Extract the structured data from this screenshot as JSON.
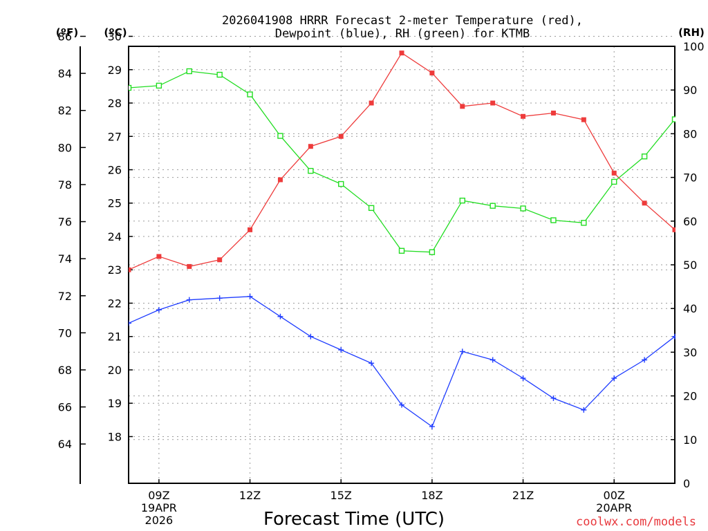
{
  "chart_data": {
    "type": "line",
    "title_line1": "2026041908 HRRR Forecast 2-meter Temperature (red),",
    "title_line2": "Dewpoint (blue), RH (green) for KTMB",
    "xlabel": "Forecast Time (UTC)",
    "credit": "coolwx.com/models",
    "units": {
      "f": "(ºF)",
      "c": "(ºC)",
      "rh": "(RH)"
    },
    "hours": [
      8,
      9,
      10,
      11,
      12,
      13,
      14,
      15,
      16,
      17,
      18,
      19,
      20,
      21,
      22,
      23,
      24,
      25,
      26
    ],
    "xlim": [
      8,
      26
    ],
    "ylim_c": [
      16.6,
      29.7
    ],
    "ylim_rh": [
      0,
      100
    ],
    "x_ticks": [
      {
        "hour": 9,
        "line1": "09Z",
        "line2": "19APR",
        "line3": "2026"
      },
      {
        "hour": 12,
        "line1": "12Z",
        "line2": "",
        "line3": ""
      },
      {
        "hour": 15,
        "line1": "15Z",
        "line2": "",
        "line3": ""
      },
      {
        "hour": 18,
        "line1": "18Z",
        "line2": "",
        "line3": ""
      },
      {
        "hour": 21,
        "line1": "21Z",
        "line2": "",
        "line3": ""
      },
      {
        "hour": 24,
        "line1": "00Z",
        "line2": "20APR",
        "line3": ""
      }
    ],
    "c_ticks": [
      {
        "value": 18,
        "label": "18"
      },
      {
        "value": 19,
        "label": "19"
      },
      {
        "value": 20,
        "label": "20"
      },
      {
        "value": 21,
        "label": "21"
      },
      {
        "value": 22,
        "label": "22"
      },
      {
        "value": 23,
        "label": "23"
      },
      {
        "value": 24,
        "label": "24"
      },
      {
        "value": 25,
        "label": "25"
      },
      {
        "value": 26,
        "label": "26"
      },
      {
        "value": 27,
        "label": "27"
      },
      {
        "value": 28,
        "label": "28"
      },
      {
        "value": 29,
        "label": "29"
      },
      {
        "value": 30,
        "label": "30"
      }
    ],
    "f_ticks": [
      {
        "value": 64,
        "label": "64"
      },
      {
        "value": 66,
        "label": "66"
      },
      {
        "value": 68,
        "label": "68"
      },
      {
        "value": 70,
        "label": "70"
      },
      {
        "value": 72,
        "label": "72"
      },
      {
        "value": 74,
        "label": "74"
      },
      {
        "value": 76,
        "label": "76"
      },
      {
        "value": 78,
        "label": "78"
      },
      {
        "value": 80,
        "label": "80"
      },
      {
        "value": 82,
        "label": "82"
      },
      {
        "value": 84,
        "label": "84"
      },
      {
        "value": 86,
        "label": "86"
      }
    ],
    "rh_ticks": [
      {
        "value": 0,
        "label": "0"
      },
      {
        "value": 10,
        "label": "10"
      },
      {
        "value": 20,
        "label": "20"
      },
      {
        "value": 30,
        "label": "30"
      },
      {
        "value": 40,
        "label": "40"
      },
      {
        "value": 50,
        "label": "50"
      },
      {
        "value": 60,
        "label": "60"
      },
      {
        "value": 70,
        "label": "70"
      },
      {
        "value": 80,
        "label": "80"
      },
      {
        "value": 90,
        "label": "90"
      },
      {
        "value": 100,
        "label": "100"
      }
    ],
    "series": [
      {
        "name": "2-meter Temperature",
        "color": "#ee3b3b",
        "marker": "square-filled",
        "axis": "c",
        "values": [
          23.0,
          23.4,
          23.1,
          23.3,
          24.2,
          25.7,
          26.7,
          27.0,
          28.0,
          29.5,
          28.9,
          27.9,
          28.0,
          27.6,
          27.7,
          27.5,
          25.9,
          25.0,
          24.2
        ]
      },
      {
        "name": "Dewpoint",
        "color": "#1e3cff",
        "marker": "plus",
        "axis": "c",
        "values": [
          21.4,
          21.8,
          22.1,
          22.15,
          22.2,
          21.6,
          21.0,
          20.6,
          20.2,
          18.95,
          18.3,
          20.55,
          20.3,
          19.75,
          19.15,
          18.8,
          19.75,
          20.3,
          21.0
        ]
      },
      {
        "name": "RH",
        "color": "#22dd22",
        "marker": "square-open",
        "axis": "rh",
        "values": [
          90.5,
          91.0,
          94.3,
          93.5,
          89.0,
          79.5,
          71.5,
          68.5,
          63.0,
          53.2,
          52.9,
          64.7,
          63.5,
          62.9,
          60.2,
          59.6,
          69.0,
          74.8,
          83.3
        ]
      }
    ]
  }
}
